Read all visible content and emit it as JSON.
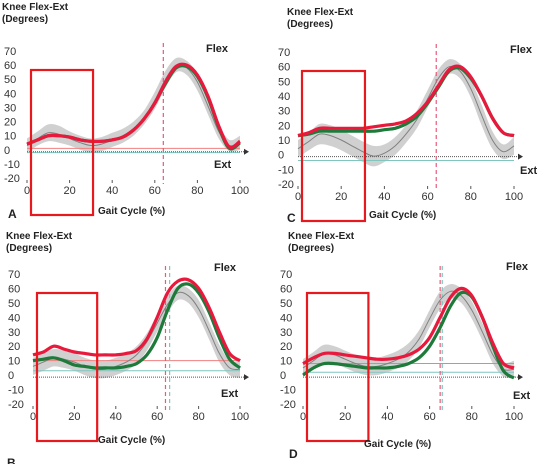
{
  "colors": {
    "patient": "#e8193c",
    "comparison": "#1e7a3a",
    "normal_band": "#c8c8c8",
    "normal_mean": "#808080",
    "highlight_box": "#e8191e",
    "baseline_red": "#f08080",
    "baseline_teal": "#7fc6bf"
  },
  "chart_data": [
    {
      "type": "line",
      "panel_label": "A",
      "title_line1": "Knee Flex-Ext",
      "title_line2": "(Degrees)",
      "xlabel": "Gait Cycle (%)",
      "flex_label": "Flex",
      "ext_label": "Ext",
      "xlim": [
        0,
        100
      ],
      "ylim": [
        -20,
        70
      ],
      "xticks": [
        "0",
        "20",
        "40",
        "60",
        "80",
        "100"
      ],
      "yticks": [
        "70",
        "60",
        "50",
        "40",
        "30",
        "20",
        "10",
        "0",
        "-10",
        "-20"
      ],
      "highlight_x": [
        0,
        31
      ],
      "toe_off": [
        64
      ],
      "x": [
        0,
        5,
        10,
        15,
        20,
        25,
        30,
        35,
        40,
        45,
        50,
        55,
        60,
        65,
        70,
        75,
        80,
        85,
        90,
        95,
        100
      ],
      "patient": [
        4,
        7,
        10,
        10,
        9,
        7,
        6,
        6,
        7,
        9,
        14,
        22,
        33,
        48,
        59,
        60,
        53,
        38,
        17,
        2,
        6
      ],
      "comparison": [
        4,
        7,
        10,
        10,
        9,
        7,
        6,
        6,
        7,
        9,
        14,
        22,
        33,
        47,
        58,
        59,
        52,
        37,
        16,
        1,
        5
      ],
      "normal_mean": [
        3,
        8,
        12,
        11,
        8,
        5,
        3,
        4,
        7,
        10,
        15,
        23,
        35,
        50,
        60,
        58,
        48,
        31,
        13,
        3,
        5
      ],
      "normal_sd": [
        5,
        5,
        6,
        6,
        5,
        5,
        5,
        5,
        5,
        5,
        5,
        5,
        6,
        6,
        5,
        5,
        6,
        6,
        5,
        4,
        5
      ],
      "baselines": [
        {
          "color": "#f08080",
          "value": 1
        },
        {
          "color": "#7fc6bf",
          "value": -2
        }
      ]
    },
    {
      "type": "line",
      "panel_label": "C",
      "title_line1": "Knee Flex-Ext",
      "title_line2": "(Degrees)",
      "xlabel": "Gait Cycle (%)",
      "flex_label": "Flex",
      "ext_label": "Ext",
      "xlim": [
        0,
        100
      ],
      "ylim": [
        -20,
        70
      ],
      "xticks": [
        "0",
        "20",
        "40",
        "60",
        "80",
        "100"
      ],
      "yticks": [
        "70",
        "60",
        "50",
        "40",
        "30",
        "20",
        "10",
        "0",
        "-10",
        "-20"
      ],
      "highlight_x": [
        0,
        31
      ],
      "toe_off": [
        64
      ],
      "x": [
        0,
        5,
        10,
        15,
        20,
        25,
        30,
        35,
        40,
        45,
        50,
        55,
        60,
        65,
        70,
        75,
        80,
        85,
        90,
        95,
        100
      ],
      "patient": [
        13,
        15,
        18,
        18,
        18,
        18,
        18,
        19,
        20,
        21,
        23,
        28,
        36,
        47,
        58,
        60,
        53,
        40,
        25,
        15,
        13
      ],
      "comparison": [
        13,
        14,
        16,
        16,
        16,
        16,
        16,
        16,
        17,
        18,
        21,
        26,
        35,
        46,
        57,
        59,
        52,
        40,
        25,
        15,
        13
      ],
      "normal_mean": [
        4,
        9,
        14,
        13,
        10,
        6,
        2,
        -1,
        1,
        6,
        14,
        24,
        38,
        52,
        60,
        57,
        45,
        27,
        10,
        2,
        6
      ],
      "normal_sd": [
        6,
        6,
        7,
        7,
        7,
        7,
        7,
        7,
        6,
        6,
        6,
        6,
        6,
        6,
        5,
        5,
        6,
        7,
        6,
        5,
        6
      ],
      "baselines": [
        {
          "color": "#7fc6bf",
          "value": -4
        }
      ]
    },
    {
      "type": "line",
      "panel_label": "B",
      "title_line1": "Knee Flex-Ext",
      "title_line2": "(Degrees)",
      "xlabel": "Gait Cycle (%)",
      "flex_label": "Flex",
      "ext_label": "Ext",
      "xlim": [
        0,
        100
      ],
      "ylim": [
        -20,
        70
      ],
      "xticks": [
        "0",
        "20",
        "40",
        "60",
        "80",
        "100"
      ],
      "yticks": [
        "70",
        "60",
        "50",
        "40",
        "30",
        "20",
        "10",
        "0",
        "-10",
        "-20"
      ],
      "highlight_x": [
        0,
        31
      ],
      "toe_off": [
        64,
        66
      ],
      "x": [
        0,
        5,
        10,
        15,
        20,
        25,
        30,
        35,
        40,
        45,
        50,
        55,
        60,
        65,
        70,
        75,
        80,
        85,
        90,
        95,
        100
      ],
      "patient": [
        14,
        16,
        20,
        18,
        16,
        15,
        14,
        14,
        14,
        15,
        17,
        25,
        40,
        57,
        65,
        66,
        60,
        47,
        30,
        15,
        10
      ],
      "comparison": [
        10,
        11,
        12,
        10,
        7,
        6,
        5,
        5,
        5,
        6,
        8,
        14,
        26,
        45,
        60,
        63,
        57,
        44,
        26,
        11,
        5
      ],
      "normal_mean": [
        6,
        9,
        12,
        11,
        9,
        6,
        4,
        4,
        6,
        9,
        14,
        23,
        36,
        49,
        57,
        55,
        46,
        31,
        15,
        5,
        4
      ],
      "normal_sd": [
        6,
        6,
        6,
        6,
        6,
        6,
        6,
        6,
        6,
        6,
        6,
        6,
        6,
        6,
        5,
        5,
        6,
        6,
        6,
        5,
        6
      ],
      "baselines": [
        {
          "color": "#f08080",
          "value": 10
        },
        {
          "color": "#7fc6bf",
          "value": 3
        }
      ]
    },
    {
      "type": "line",
      "panel_label": "D",
      "title_line1": "Knee Flex-Ext",
      "title_line2": "(Degrees)",
      "xlabel": "Gait Cycle (%)",
      "flex_label": "Flex",
      "ext_label": "Ext",
      "xlim": [
        0,
        100
      ],
      "ylim": [
        -20,
        70
      ],
      "xticks": [
        "0",
        "20",
        "40",
        "60",
        "80",
        "100"
      ],
      "yticks": [
        "70",
        "60",
        "50",
        "40",
        "30",
        "20",
        "10",
        "0",
        "-10",
        "-20"
      ],
      "highlight_x": [
        0,
        31
      ],
      "toe_off": [
        65,
        66
      ],
      "x": [
        0,
        5,
        10,
        15,
        20,
        25,
        30,
        35,
        40,
        45,
        50,
        55,
        60,
        65,
        70,
        75,
        80,
        85,
        90,
        95,
        100
      ],
      "patient": [
        8,
        12,
        15,
        15,
        14,
        13,
        12,
        11,
        11,
        12,
        14,
        18,
        26,
        40,
        54,
        60,
        55,
        40,
        22,
        8,
        5
      ],
      "comparison": [
        0,
        5,
        8,
        8,
        7,
        6,
        5,
        5,
        5,
        6,
        8,
        12,
        20,
        33,
        48,
        57,
        54,
        40,
        20,
        3,
        -2
      ],
      "normal_mean": [
        5,
        10,
        15,
        14,
        11,
        8,
        6,
        6,
        8,
        11,
        16,
        25,
        39,
        52,
        58,
        55,
        45,
        30,
        14,
        4,
        4
      ],
      "normal_sd": [
        6,
        6,
        6,
        6,
        6,
        6,
        6,
        6,
        6,
        6,
        6,
        6,
        6,
        6,
        5,
        5,
        6,
        6,
        6,
        5,
        6
      ],
      "baselines": [
        {
          "color": "#f08080",
          "value": 8
        },
        {
          "color": "#7fc6bf",
          "value": 2
        }
      ]
    }
  ]
}
